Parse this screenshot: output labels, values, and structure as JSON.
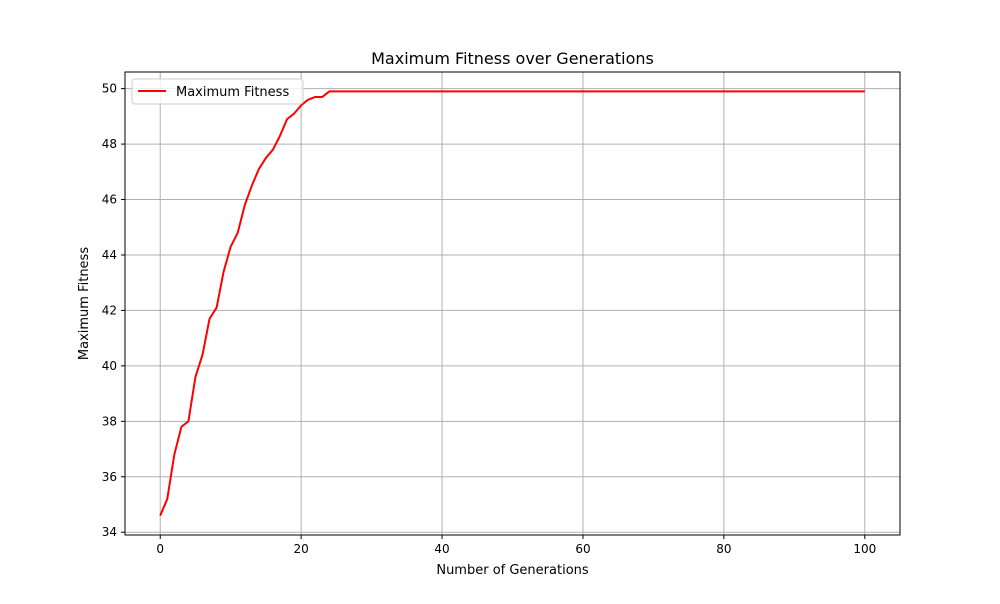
{
  "chart_data": {
    "type": "line",
    "title": "Maximum Fitness over Generations",
    "xlabel": "Number of Generations",
    "ylabel": "Maximum Fitness",
    "xlim": [
      -5,
      105
    ],
    "ylim": [
      33.9,
      50.6
    ],
    "x_ticks": [
      0,
      20,
      40,
      60,
      80,
      100
    ],
    "y_ticks": [
      34,
      36,
      38,
      40,
      42,
      44,
      46,
      48,
      50
    ],
    "grid": true,
    "legend_position": "top-left",
    "series": [
      {
        "name": "Maximum Fitness",
        "color": "#ff0000",
        "x": [
          0,
          1,
          2,
          3,
          4,
          5,
          6,
          7,
          8,
          9,
          10,
          11,
          12,
          13,
          14,
          15,
          16,
          17,
          18,
          19,
          20,
          21,
          22,
          23,
          24,
          25,
          100
        ],
        "values": [
          34.6,
          35.2,
          36.8,
          37.8,
          38.0,
          39.6,
          40.4,
          41.7,
          42.1,
          43.4,
          44.3,
          44.8,
          45.8,
          46.5,
          47.1,
          47.5,
          47.8,
          48.3,
          48.9,
          49.1,
          49.4,
          49.6,
          49.7,
          49.7,
          49.9,
          49.9,
          49.9
        ]
      }
    ]
  }
}
